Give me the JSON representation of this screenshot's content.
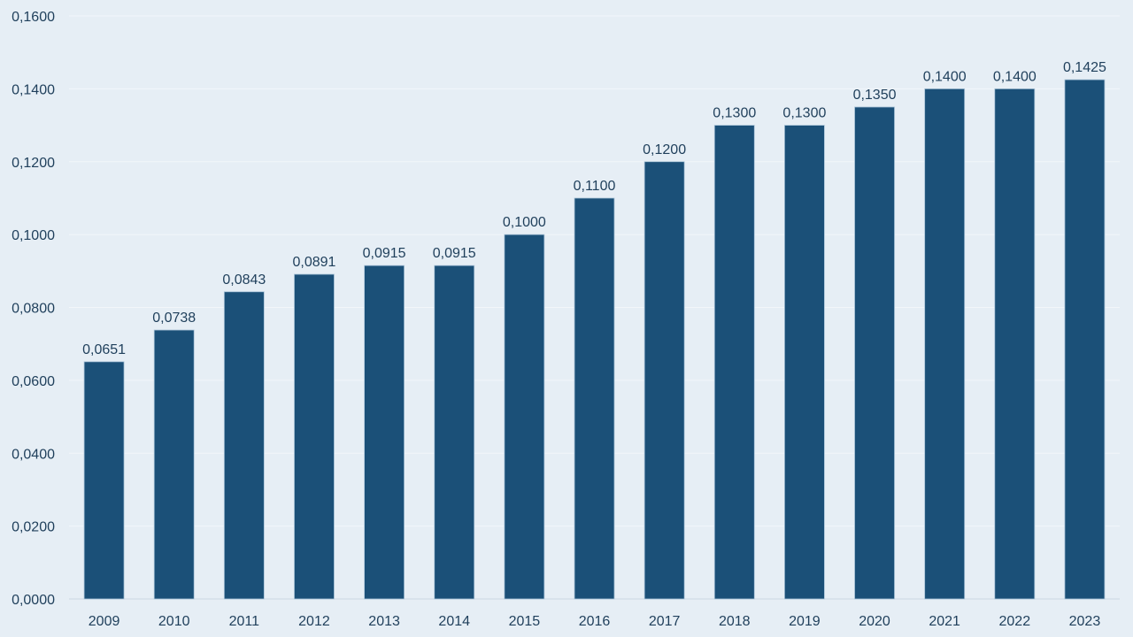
{
  "chart_data": {
    "type": "bar",
    "title": "",
    "xlabel": "",
    "ylabel": "",
    "categories": [
      "2009",
      "2010",
      "2011",
      "2012",
      "2013",
      "2014",
      "2015",
      "2016",
      "2017",
      "2018",
      "2019",
      "2020",
      "2021",
      "2022",
      "2023"
    ],
    "values": [
      0.0651,
      0.0738,
      0.0843,
      0.0891,
      0.0915,
      0.0915,
      0.1,
      0.11,
      0.12,
      0.13,
      0.13,
      0.135,
      0.14,
      0.14,
      0.1425
    ],
    "value_labels": [
      "0,0651",
      "0,0738",
      "0,0843",
      "0,0891",
      "0,0915",
      "0,0915",
      "0,1000",
      "0,1100",
      "0,1200",
      "0,1300",
      "0,1300",
      "0,1350",
      "0,1400",
      "0,1400",
      "0,1425"
    ],
    "ylim": [
      0,
      0.16
    ],
    "yticks": [
      0,
      0.02,
      0.04,
      0.06,
      0.08,
      0.1,
      0.12,
      0.14,
      0.16
    ],
    "ytick_labels": [
      "0,0000",
      "0,0200",
      "0,0400",
      "0,0600",
      "0,0800",
      "0,1000",
      "0,1200",
      "0,1400",
      "0,1600"
    ],
    "grid": true,
    "legend": "none",
    "colors": {
      "bar": "#1b5078",
      "text": "#1f3f5b",
      "background": "#e6eef5",
      "grid": "#f2f6fa"
    }
  }
}
